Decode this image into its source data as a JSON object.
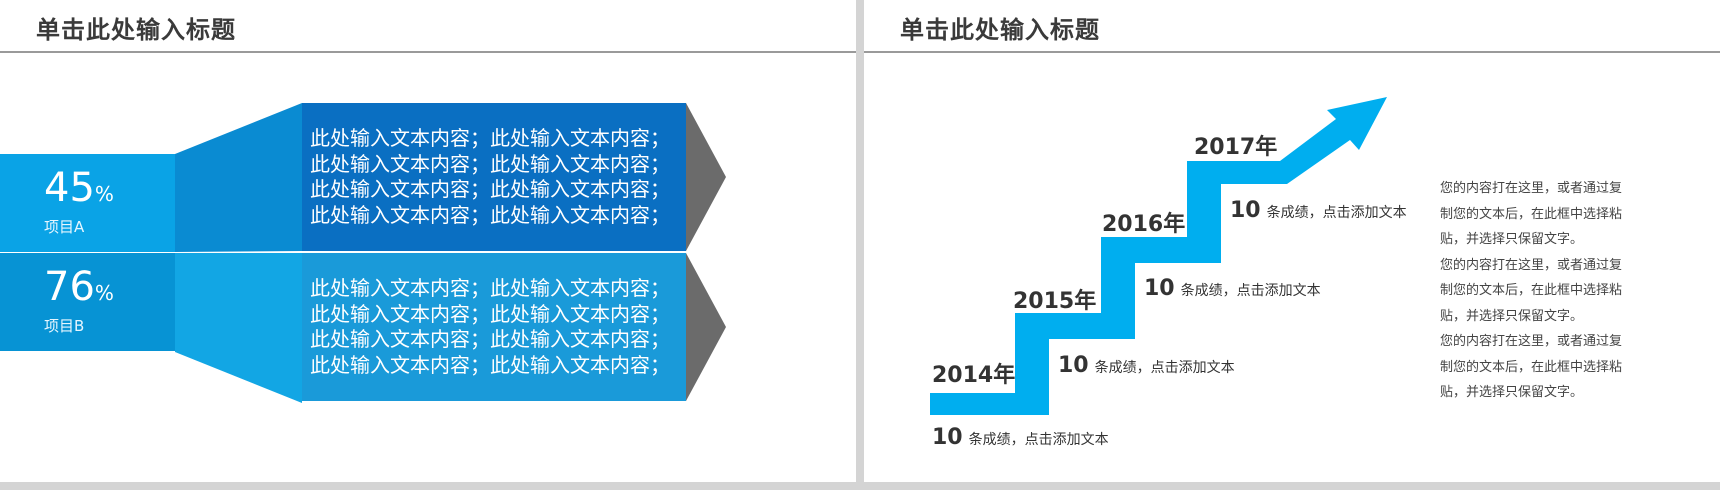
{
  "left_slide": {
    "title": "单击此处输入标题",
    "items": [
      {
        "percent": "45",
        "percent_sign": "%",
        "label": "项目A",
        "lines": [
          "此处输入文本内容；此处输入文本内容；",
          "此处输入文本内容；此处输入文本内容；",
          "此处输入文本内容；此处输入文本内容；",
          "此处输入文本内容；此处输入文本内容；"
        ]
      },
      {
        "percent": "76",
        "percent_sign": "%",
        "label": "项目B",
        "lines": [
          "此处输入文本内容；此处输入文本内容；",
          "此处输入文本内容；此处输入文本内容；",
          "此处输入文本内容；此处输入文本内容；",
          "此处输入文本内容；此处输入文本内容；"
        ]
      }
    ]
  },
  "right_slide": {
    "title": "单击此处输入标题",
    "steps": [
      {
        "year": "2014年",
        "num": "10",
        "text": "条成绩，点击添加文本"
      },
      {
        "year": "2015年",
        "num": "10",
        "text": "条成绩，点击添加文本"
      },
      {
        "year": "2016年",
        "num": "10",
        "text": "条成绩，点击添加文本"
      },
      {
        "year": "2017年",
        "num": "10",
        "text": "条成绩，点击添加文本"
      }
    ],
    "paragraph_lines": [
      "您的内容打在这里，或者通过复",
      "制您的文本后，在此框中选择粘",
      "贴，并选择只保留文字。",
      "您的内容打在这里，或者通过复",
      "制您的文本后，在此框中选择粘",
      "贴，并选择只保留文字。",
      "您的内容打在这里，或者通过复",
      "制您的文本后，在此框中选择粘",
      "贴，并选择只保留文字。"
    ]
  },
  "colors": {
    "accent": "#00aeef",
    "panel_dark": "#0a6fc2",
    "panel_light": "#1a9ad9",
    "chevron": "#6b6b6b"
  }
}
